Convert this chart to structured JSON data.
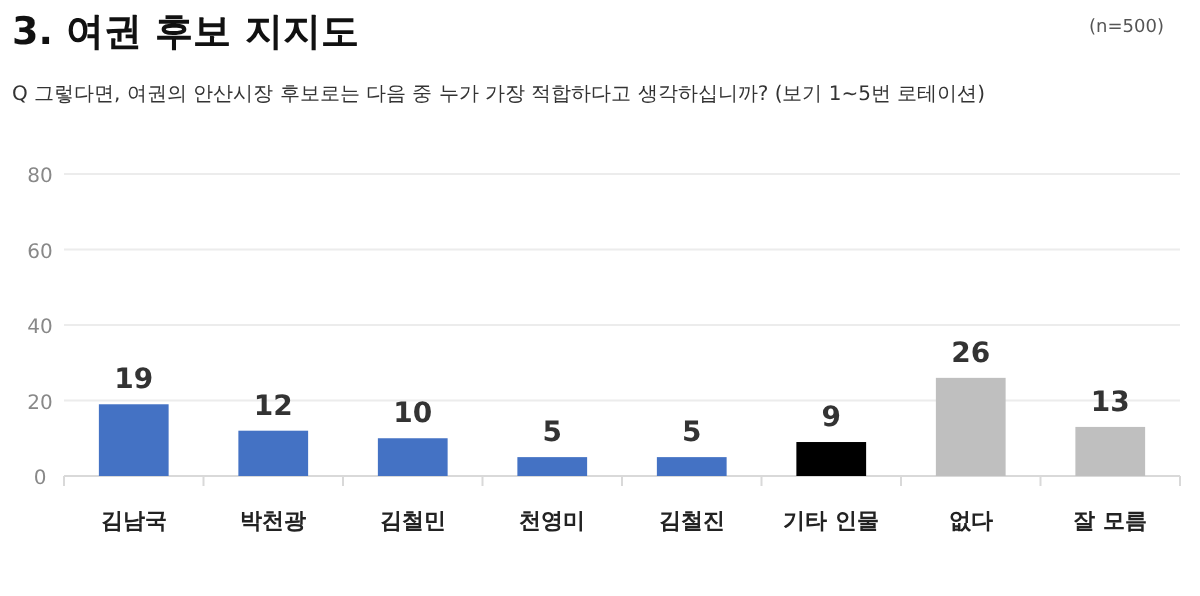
{
  "chart_data": {
    "type": "bar",
    "title": "3. 여권 후보 지지도",
    "subtitle": "Q 그렇다면, 여권의 안산시장 후보로는 다음 중 누가 가장 적합하다고 생각하십니까? (보기 1~5번 로테이션)",
    "annotations": [
      "(n=500)"
    ],
    "categories": [
      "김남국",
      "박천광",
      "김철민",
      "천영미",
      "김철진",
      "기타 인물",
      "없다",
      "잘 모름"
    ],
    "values": [
      19,
      12,
      10,
      5,
      5,
      9,
      26,
      13
    ],
    "colors": [
      "#4472c4",
      "#4472c4",
      "#4472c4",
      "#4472c4",
      "#4472c4",
      "#000000",
      "#bfbfbf",
      "#bfbfbf"
    ],
    "ylim": [
      0,
      80
    ],
    "yticks": [
      0,
      20,
      40,
      60,
      80
    ],
    "grid": "y",
    "data_labels": true
  }
}
